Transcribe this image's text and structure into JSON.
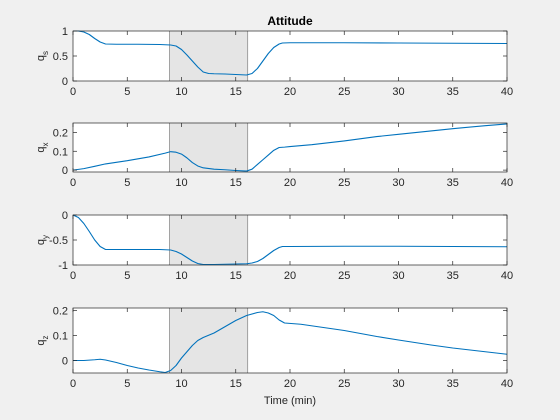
{
  "figure": {
    "title": "Attitude",
    "xlabel": "Time (min)",
    "background": "#f0f0f0",
    "axes_background": "#ffffff",
    "line_color": "#0072bd",
    "shade_color": "#e5e5e5",
    "axis_color": "#262626"
  },
  "chart_data": [
    {
      "type": "line",
      "ylabel_main": "q",
      "ylabel_sub": "s",
      "xlim": [
        0,
        40
      ],
      "ylim": [
        0,
        1
      ],
      "xticks": [
        0,
        5,
        10,
        15,
        20,
        25,
        30,
        35,
        40
      ],
      "yticks": [
        0,
        0.5,
        1
      ],
      "ytick_labels": [
        "0",
        "0.5",
        "1"
      ],
      "shade": [
        8.9,
        16.1
      ],
      "series": [
        {
          "x": [
            0,
            0.5,
            1,
            1.5,
            2,
            2.5,
            3,
            4,
            6,
            8,
            9,
            9.5,
            10,
            10.5,
            11,
            11.5,
            12,
            12.5,
            13,
            14,
            15,
            16,
            16.5,
            17,
            17.5,
            18,
            18.5,
            19,
            19.3,
            20,
            25,
            30,
            35,
            40
          ],
          "y": [
            1.0,
            1.0,
            0.98,
            0.93,
            0.85,
            0.78,
            0.74,
            0.735,
            0.735,
            0.73,
            0.72,
            0.7,
            0.63,
            0.52,
            0.4,
            0.28,
            0.18,
            0.15,
            0.145,
            0.14,
            0.13,
            0.12,
            0.15,
            0.25,
            0.4,
            0.55,
            0.67,
            0.74,
            0.76,
            0.765,
            0.765,
            0.76,
            0.755,
            0.75
          ]
        }
      ]
    },
    {
      "type": "line",
      "ylabel_main": "q",
      "ylabel_sub": "x",
      "xlim": [
        0,
        40
      ],
      "ylim": [
        -0.01,
        0.25
      ],
      "xticks": [
        0,
        5,
        10,
        15,
        20,
        25,
        30,
        35,
        40
      ],
      "yticks": [
        0,
        0.1,
        0.2
      ],
      "ytick_labels": [
        "0",
        "0.1",
        "0.2"
      ],
      "shade": [
        8.9,
        16.1
      ],
      "series": [
        {
          "x": [
            0,
            1,
            2,
            3,
            5,
            7,
            8.5,
            9,
            9.5,
            10,
            10.5,
            11,
            11.5,
            12,
            13,
            14,
            15,
            16,
            16.5,
            17,
            17.5,
            18,
            18.5,
            19,
            19.5,
            20,
            22,
            25,
            28,
            30,
            33,
            35,
            38,
            40
          ],
          "y": [
            0.0,
            0.008,
            0.02,
            0.033,
            0.05,
            0.07,
            0.09,
            0.098,
            0.095,
            0.085,
            0.065,
            0.04,
            0.022,
            0.012,
            0.005,
            0.002,
            -0.002,
            -0.005,
            0.005,
            0.03,
            0.055,
            0.08,
            0.105,
            0.12,
            0.122,
            0.125,
            0.135,
            0.155,
            0.178,
            0.19,
            0.208,
            0.22,
            0.236,
            0.245
          ]
        }
      ]
    },
    {
      "type": "line",
      "ylabel_main": "q",
      "ylabel_sub": "y",
      "xlim": [
        0,
        40
      ],
      "ylim": [
        -1,
        0
      ],
      "xticks": [
        0,
        5,
        10,
        15,
        20,
        25,
        30,
        35,
        40
      ],
      "yticks": [
        -1,
        -0.5,
        0
      ],
      "ytick_labels": [
        "-1",
        "-0.5",
        "0"
      ],
      "shade": [
        8.9,
        16.1
      ],
      "series": [
        {
          "x": [
            0,
            0.5,
            1,
            1.5,
            2,
            2.5,
            3,
            4,
            6,
            8,
            9,
            9.5,
            10,
            10.5,
            11,
            11.5,
            12,
            13,
            14,
            15,
            16,
            16.5,
            17,
            17.5,
            18,
            18.5,
            19,
            19.3,
            20,
            25,
            30,
            35,
            40
          ],
          "y": [
            0.0,
            -0.05,
            -0.17,
            -0.33,
            -0.5,
            -0.63,
            -0.69,
            -0.69,
            -0.69,
            -0.69,
            -0.7,
            -0.73,
            -0.78,
            -0.85,
            -0.92,
            -0.97,
            -0.99,
            -0.99,
            -0.985,
            -0.98,
            -0.975,
            -0.96,
            -0.93,
            -0.87,
            -0.79,
            -0.71,
            -0.65,
            -0.63,
            -0.63,
            -0.625,
            -0.625,
            -0.63,
            -0.635
          ]
        }
      ]
    },
    {
      "type": "line",
      "ylabel_main": "q",
      "ylabel_sub": "z",
      "xlim": [
        0,
        40
      ],
      "ylim": [
        -0.05,
        0.21
      ],
      "xticks": [
        0,
        5,
        10,
        15,
        20,
        25,
        30,
        35,
        40
      ],
      "yticks": [
        0,
        0.1,
        0.2
      ],
      "ytick_labels": [
        "0",
        "0.1",
        "0.2"
      ],
      "shade": [
        8.9,
        16.1
      ],
      "series": [
        {
          "x": [
            0,
            1,
            2,
            2.5,
            3,
            4,
            5,
            6,
            7,
            8,
            8.5,
            9,
            9.5,
            10,
            10.5,
            11,
            11.5,
            12,
            13,
            14,
            15,
            16,
            17,
            17.5,
            18,
            18.5,
            19,
            19.5,
            21,
            25,
            28,
            30,
            33,
            35,
            38,
            40
          ],
          "y": [
            0.0,
            0.0,
            0.003,
            0.005,
            0.002,
            -0.008,
            -0.02,
            -0.03,
            -0.038,
            -0.045,
            -0.048,
            -0.04,
            -0.02,
            0.01,
            0.035,
            0.06,
            0.08,
            0.092,
            0.11,
            0.135,
            0.16,
            0.18,
            0.192,
            0.195,
            0.19,
            0.18,
            0.162,
            0.15,
            0.145,
            0.12,
            0.096,
            0.082,
            0.062,
            0.05,
            0.035,
            0.025
          ]
        }
      ]
    }
  ]
}
